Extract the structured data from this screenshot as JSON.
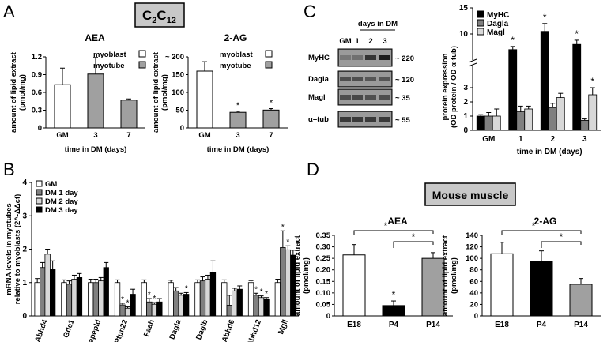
{
  "colors": {
    "white": "#ffffff",
    "gray": "#a0a0a0",
    "lightgray": "#d8d8d8",
    "darkgray": "#808080",
    "black": "#000000",
    "box": "#c8c8c8"
  },
  "panels": {
    "A": "A",
    "B": "B",
    "C": "C",
    "D": "D"
  },
  "boxes": {
    "c2c12": "C",
    "c2c12_sub": "2",
    "c2c12_c": "C",
    "c2c12_sub2": "12",
    "mouse": "Mouse muscle"
  },
  "chart_data": [
    {
      "id": "A_AEA",
      "type": "bar",
      "title": "AEA",
      "xlabel": "time in DM (days)",
      "ylabel": "amount of lipid extract",
      "ylabel_unit": "(pmol/mg)",
      "categories": [
        "GM",
        "3",
        "7"
      ],
      "values": [
        0.73,
        0.91,
        0.47
      ],
      "errors": [
        0.28,
        0.28,
        0.02
      ],
      "series_of_bar": [
        "myoblast",
        "myotube",
        "myotube"
      ],
      "ylim": [
        0,
        1.2
      ],
      "yticks": [
        "0",
        "0.3",
        "0.6",
        "0.9",
        "1.2"
      ],
      "legend": [
        "myoblast",
        "myotube"
      ],
      "stars": [
        "",
        "",
        ""
      ]
    },
    {
      "id": "A_2AG",
      "type": "bar",
      "title": "2-AG",
      "xlabel": "time in DM (days)",
      "ylabel": "amount of lipid extract",
      "ylabel_unit": "(pmol/mg)",
      "categories": [
        "GM",
        "3",
        "7"
      ],
      "values": [
        200,
        55,
        63
      ],
      "errors": [
        33,
        4,
        5
      ],
      "series_of_bar": [
        "myoblast",
        "myotube",
        "myotube"
      ],
      "ylim": [
        0,
        250
      ],
      "yticks": [
        "0",
        "50",
        "100",
        "150",
        "~ 200"
      ],
      "legend": [
        "myoblast",
        "myotube"
      ],
      "stars": [
        "",
        "*",
        "*"
      ]
    },
    {
      "id": "B",
      "type": "bar",
      "ylabel": "mRNA levels in myotubes",
      "ylabel2": "relative to myoblasts (2^-ΔΔct)",
      "categories": [
        "Abhd4",
        "Gde1",
        "Napepld",
        "Ptpn22",
        "Faah",
        "Dagla",
        "Daglb",
        "Abhd6",
        "Abhd12",
        "Mgll"
      ],
      "series": [
        {
          "name": "GM",
          "values": [
            1.0,
            1.0,
            1.0,
            1.0,
            1.0,
            1.0,
            1.0,
            1.0,
            1.0,
            1.0
          ],
          "errors": [
            0.12,
            0.08,
            0.1,
            0.08,
            0.08,
            0.07,
            0.08,
            0.08,
            0.06,
            0.1
          ]
        },
        {
          "name": "DM 1 day",
          "values": [
            1.45,
            0.95,
            1.0,
            0.33,
            0.42,
            0.75,
            1.05,
            0.32,
            0.62,
            2.05
          ],
          "errors": [
            0.15,
            0.1,
            0.1,
            0.05,
            0.1,
            0.1,
            0.12,
            0.3,
            0.06,
            0.5
          ]
        },
        {
          "name": "DM 2 day",
          "values": [
            1.85,
            1.1,
            1.05,
            0.23,
            0.35,
            0.62,
            1.1,
            0.75,
            0.55,
            1.98
          ],
          "errors": [
            0.15,
            0.12,
            0.1,
            0.04,
            0.05,
            0.06,
            0.12,
            0.08,
            0.05,
            0.12
          ]
        },
        {
          "name": "DM 3 day",
          "values": [
            1.4,
            1.15,
            1.45,
            0.65,
            0.42,
            0.65,
            1.3,
            0.8,
            0.5,
            1.82
          ],
          "errors": [
            0.25,
            0.12,
            0.15,
            0.15,
            0.1,
            0.05,
            0.35,
            0.1,
            0.05,
            0.15
          ]
        }
      ],
      "stars": [
        [
          "",
          "",
          "",
          ""
        ],
        [
          "",
          "",
          "",
          ""
        ],
        [
          "",
          "",
          "",
          ""
        ],
        [
          "",
          "*",
          "*",
          ""
        ],
        [
          "",
          "*",
          "*",
          ""
        ],
        [
          "",
          "",
          "",
          "*"
        ],
        [
          "",
          "",
          "",
          ""
        ],
        [
          "",
          "",
          "",
          ""
        ],
        [
          "",
          "*",
          "*",
          "*"
        ],
        [
          "",
          "*",
          "*",
          ""
        ]
      ],
      "ylim": [
        0,
        4
      ],
      "yticks": [
        "0",
        "1",
        "2",
        "3",
        "4"
      ]
    },
    {
      "id": "C",
      "type": "bar",
      "ylabel": "protein expression",
      "ylabel2": "(OD protein / OD α-tub)",
      "xlabel": "time in DM (days)",
      "categories": [
        "GM",
        "1",
        "2",
        "3"
      ],
      "series": [
        {
          "name": "MyHC",
          "values": [
            1.0,
            7.0,
            10.5,
            8.0
          ],
          "errors": [
            0.1,
            0.6,
            1.5,
            0.8
          ]
        },
        {
          "name": "Dagla",
          "values": [
            1.0,
            1.3,
            1.6,
            0.7
          ],
          "errors": [
            0.25,
            0.4,
            0.3,
            0.1
          ]
        },
        {
          "name": "Magl",
          "values": [
            1.0,
            1.5,
            2.3,
            2.5
          ],
          "errors": [
            0.5,
            0.2,
            0.3,
            0.5
          ]
        }
      ],
      "stars": [
        [
          "",
          "",
          ""
        ],
        [
          "*",
          "",
          ""
        ],
        [
          "*",
          "",
          ""
        ],
        [
          "*",
          "",
          "*"
        ]
      ],
      "yticks": [
        "0",
        "1",
        "2",
        "3",
        "~ 4",
        "5",
        "10",
        "15"
      ]
    },
    {
      "id": "D_AEA",
      "type": "bar",
      "title": "AEA",
      "ylabel": "amount of lipid extract",
      "ylabel_unit": "(pmol/mg)",
      "categories": [
        "E18",
        "P4",
        "P14"
      ],
      "values": [
        0.265,
        0.045,
        0.25
      ],
      "errors": [
        0.045,
        0.02,
        0.025
      ],
      "colors": [
        "white",
        "black",
        "gray"
      ],
      "ylim": [
        0,
        0.35
      ],
      "yticks": [
        "0",
        "0.05",
        "0.10",
        "0.15",
        "0.20",
        "0.25",
        "0.30",
        "0.35"
      ],
      "stars": [
        "",
        "*",
        ""
      ],
      "brackets": [
        "*",
        "*"
      ]
    },
    {
      "id": "D_2AG",
      "type": "bar",
      "title": "2-AG",
      "ylabel": "amount of lipid extract",
      "ylabel_unit": "(pmol/mg)",
      "categories": [
        "E18",
        "P4",
        "P14"
      ],
      "values": [
        108,
        95,
        55
      ],
      "errors": [
        20,
        18,
        10
      ],
      "colors": [
        "white",
        "black",
        "gray"
      ],
      "ylim": [
        0,
        140
      ],
      "yticks": [
        "0",
        "20",
        "40",
        "60",
        "80",
        "100",
        "120",
        "140"
      ],
      "stars": [
        "",
        "",
        ""
      ],
      "brackets": [
        "*",
        "*"
      ]
    }
  ],
  "blot": {
    "header": "days in DM",
    "lanes": [
      "GM",
      "1",
      "2",
      "3"
    ],
    "rows": [
      {
        "label": "MyHC",
        "size": "~ 220"
      },
      {
        "label": "Dagla",
        "size": "~ 120"
      },
      {
        "label": "Magl",
        "size": "~ 35"
      },
      {
        "label": "α–tub",
        "size": "~ 55"
      }
    ]
  }
}
